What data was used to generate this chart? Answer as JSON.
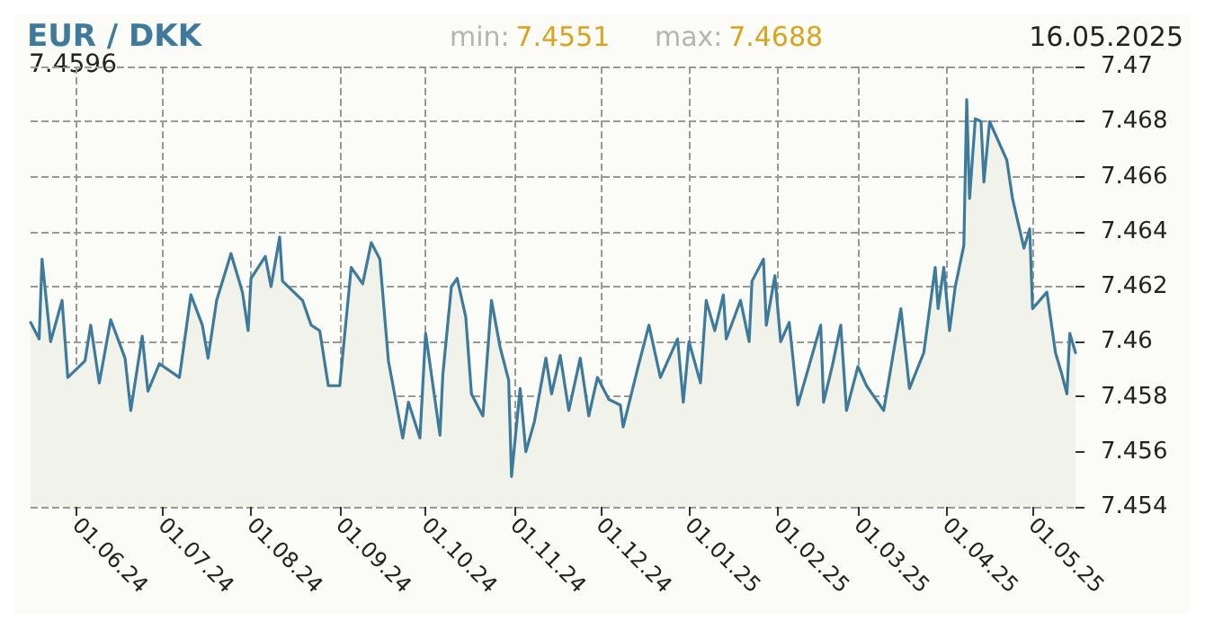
{
  "chart_data": {
    "type": "area",
    "title": "EUR / DKK",
    "annotations": [
      "7.4596",
      "min: 7.4551",
      "max: 7.4688",
      "16.05.2025"
    ],
    "x": [
      "2024-05-16",
      "2024-05-19",
      "2024-05-20",
      "2024-05-23",
      "2024-05-27",
      "2024-05-29",
      "2024-06-04",
      "2024-06-06",
      "2024-06-09",
      "2024-06-13",
      "2024-06-18",
      "2024-06-20",
      "2024-06-24",
      "2024-06-26",
      "2024-06-30",
      "2024-07-07",
      "2024-07-11",
      "2024-07-15",
      "2024-07-17",
      "2024-07-20",
      "2024-07-25",
      "2024-07-29",
      "2024-07-31",
      "2024-08-01",
      "2024-08-06",
      "2024-08-08",
      "2024-08-11",
      "2024-08-12",
      "2024-08-19",
      "2024-08-22",
      "2024-08-25",
      "2024-08-28",
      "2024-09-01",
      "2024-09-05",
      "2024-09-09",
      "2024-09-12",
      "2024-09-15",
      "2024-09-18",
      "2024-09-23",
      "2024-09-25",
      "2024-09-29",
      "2024-10-01",
      "2024-10-06",
      "2024-10-07",
      "2024-10-10",
      "2024-10-12",
      "2024-10-15",
      "2024-10-17",
      "2024-10-21",
      "2024-10-24",
      "2024-10-27",
      "2024-10-30",
      "2024-10-31",
      "2024-11-03",
      "2024-11-05",
      "2024-11-08",
      "2024-11-12",
      "2024-11-14",
      "2024-11-17",
      "2024-11-20",
      "2024-11-24",
      "2024-11-27",
      "2024-11-30",
      "2024-12-04",
      "2024-12-08",
      "2024-12-09",
      "2024-12-14",
      "2024-12-18",
      "2024-12-22",
      "2024-12-28",
      "2024-12-30",
      "2025-01-01",
      "2025-01-05",
      "2025-01-07",
      "2025-01-10",
      "2025-01-13",
      "2025-01-14",
      "2025-01-19",
      "2025-01-22",
      "2025-01-23",
      "2025-01-27",
      "2025-01-28",
      "2025-01-31",
      "2025-02-02",
      "2025-02-05",
      "2025-02-08",
      "2025-02-16",
      "2025-02-17",
      "2025-02-20",
      "2025-02-23",
      "2025-02-25",
      "2025-03-01",
      "2025-03-04",
      "2025-03-10",
      "2025-03-16",
      "2025-03-19",
      "2025-03-24",
      "2025-03-28",
      "2025-03-29",
      "2025-03-31",
      "2025-04-02",
      "2025-04-04",
      "2025-04-07",
      "2025-04-08",
      "2025-04-09",
      "2025-04-11",
      "2025-04-13",
      "2025-04-14",
      "2025-04-16",
      "2025-04-22",
      "2025-04-24",
      "2025-04-28",
      "2025-04-30",
      "2025-05-01",
      "2025-05-06",
      "2025-05-09",
      "2025-05-11",
      "2025-05-13",
      "2025-05-14",
      "2025-05-16"
    ],
    "series": [
      {
        "color": "#3d7a9b",
        "values": [
          7.4607,
          7.4601,
          7.463,
          7.46,
          7.4615,
          7.4587,
          7.4593,
          7.4606,
          7.4585,
          7.4608,
          7.4594,
          7.4575,
          7.4602,
          7.4582,
          7.4592,
          7.4587,
          7.4617,
          7.4606,
          7.4594,
          7.4615,
          7.4632,
          7.4618,
          7.4604,
          7.4623,
          7.4631,
          7.462,
          7.4638,
          7.4622,
          7.4615,
          7.4606,
          7.4604,
          7.4584,
          7.4584,
          7.4627,
          7.4621,
          7.4636,
          7.463,
          7.4593,
          7.4565,
          7.4578,
          7.4565,
          7.4603,
          7.4566,
          7.4588,
          7.462,
          7.4623,
          7.4609,
          7.4581,
          7.4573,
          7.4615,
          7.4598,
          7.4586,
          7.4551,
          7.4583,
          7.456,
          7.4571,
          7.4594,
          7.4581,
          7.4595,
          7.4575,
          7.4594,
          7.4573,
          7.4587,
          7.4579,
          7.4577,
          7.4569,
          7.459,
          7.4606,
          7.4587,
          7.4601,
          7.4578,
          7.46,
          7.4585,
          7.4615,
          7.4604,
          7.4617,
          7.4601,
          7.4615,
          7.46,
          7.4622,
          7.463,
          7.4606,
          7.4624,
          7.46,
          7.4607,
          7.4577,
          7.4606,
          7.4578,
          7.4591,
          7.4606,
          7.4575,
          7.4591,
          7.4584,
          7.4575,
          7.4612,
          7.4583,
          7.4596,
          7.4627,
          7.4612,
          7.4627,
          7.4604,
          7.462,
          7.4635,
          7.4688,
          7.4652,
          7.4681,
          7.468,
          7.4658,
          7.468,
          7.4666,
          7.4652,
          7.4634,
          7.4641,
          7.4612,
          7.4618,
          7.4596,
          7.4589,
          7.4581,
          7.4603,
          7.4596
        ]
      }
    ],
    "xlim": [
      "2024-05-16",
      "2025-05-16"
    ],
    "xticks": [
      {
        "value": "2024-06-01",
        "label": "01.06.24"
      },
      {
        "value": "2024-07-01",
        "label": "01.07.24"
      },
      {
        "value": "2024-08-01",
        "label": "01.08.24"
      },
      {
        "value": "2024-09-01",
        "label": "01.09.24"
      },
      {
        "value": "2024-10-01",
        "label": "01.10.24"
      },
      {
        "value": "2024-11-01",
        "label": "01.11.24"
      },
      {
        "value": "2024-12-01",
        "label": "01.12.24"
      },
      {
        "value": "2025-01-01",
        "label": "01.01.25"
      },
      {
        "value": "2025-02-01",
        "label": "01.02.25"
      },
      {
        "value": "2025-03-01",
        "label": "01.03.25"
      },
      {
        "value": "2025-04-01",
        "label": "01.04.25"
      },
      {
        "value": "2025-05-01",
        "label": "01.05.25"
      }
    ],
    "ylim": [
      7.454,
      7.47
    ],
    "yticks": [
      7.454,
      7.456,
      7.458,
      7.46,
      7.462,
      7.464,
      7.466,
      7.468,
      7.47
    ],
    "grid": true,
    "marker": "none",
    "line_style": "solid"
  }
}
